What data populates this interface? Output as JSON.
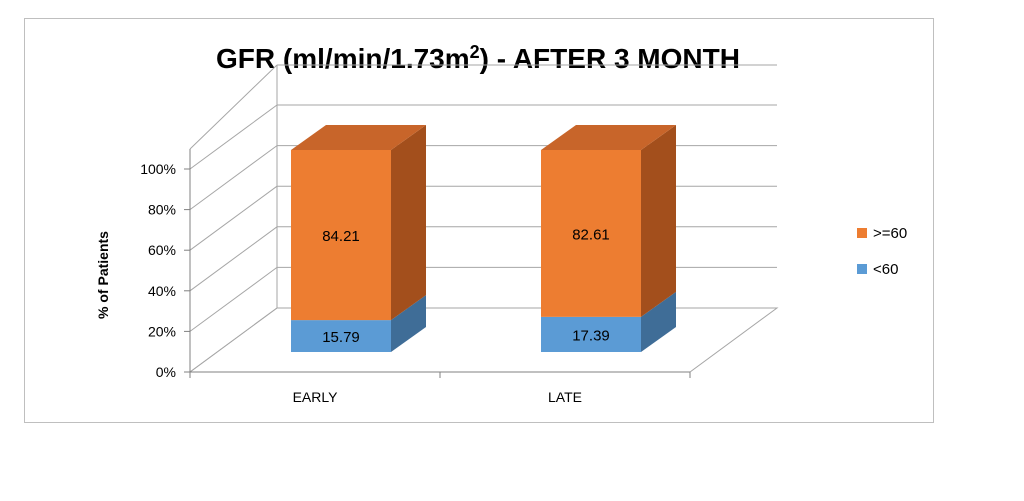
{
  "chart_data": {
    "type": "bar",
    "stacked": true,
    "percent_stacked": true,
    "three_d": true,
    "title_main": "GFR (ml/min/1.73m",
    "title_sup": "2",
    "title_end": ") -  AFTER 3 MONTH",
    "ylabel": "% of Patients",
    "xlabel": "",
    "categories": [
      "EARLY",
      "LATE"
    ],
    "yticks": [
      "0%",
      "20%",
      "40%",
      "60%",
      "80%",
      "100%"
    ],
    "ylim": [
      0,
      100
    ],
    "legend_position": "right",
    "series": [
      {
        "name": "<60",
        "values": [
          15.79,
          17.39
        ],
        "labels": [
          "15.79",
          "17.39"
        ],
        "color": "#5b9bd5",
        "side": "#3f6d97",
        "top": "#4a84b8"
      },
      {
        "name": ">=60",
        "values": [
          84.21,
          82.61
        ],
        "labels": [
          "84.21",
          "82.61"
        ],
        "color": "#ed7d31",
        "side": "#a34f1c",
        "top": "#c8652a"
      }
    ],
    "legend_order": [
      1,
      0
    ],
    "grid": true
  }
}
